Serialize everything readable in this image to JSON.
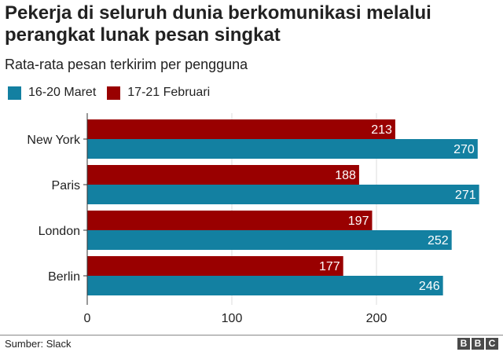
{
  "title": "Pekerja di seluruh dunia berkomunikasi melalui perangkat lunak pesan singkat",
  "subtitle": "Rata-rata pesan terkirim per pengguna",
  "source": "Sumber: Slack",
  "logo_text": "BBC",
  "chart_data": {
    "type": "bar",
    "orientation": "horizontal",
    "categories": [
      "New York",
      "Paris",
      "London",
      "Berlin"
    ],
    "series": [
      {
        "name": "16-20 Maret",
        "color": "#1380a1",
        "values": [
          270,
          271,
          252,
          246
        ]
      },
      {
        "name": "17-21 Februari",
        "color": "#990000",
        "values": [
          213,
          188,
          197,
          177
        ]
      }
    ],
    "xticks": [
      0,
      100,
      200
    ],
    "xlim": [
      0,
      280
    ],
    "grid": true,
    "legend_position": "top-left",
    "data_labels": true
  }
}
